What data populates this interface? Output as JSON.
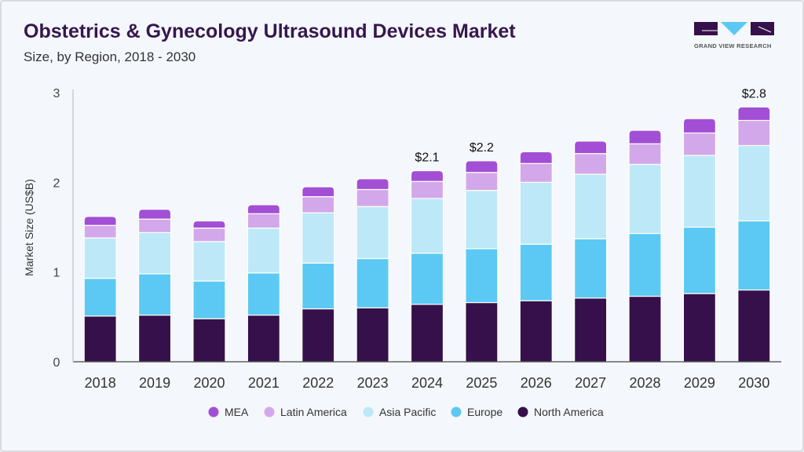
{
  "header": {
    "title": "Obstetrics & Gynecology Ultrasound Devices Market",
    "subtitle": "Size, by Region, 2018 - 2030"
  },
  "logo": {
    "text": "GRAND VIEW RESEARCH"
  },
  "chart_data": {
    "type": "bar",
    "stacked": true,
    "title": "Obstetrics & Gynecology Ultrasound Devices Market",
    "subtitle": "Size, by Region, 2018 - 2030",
    "xlabel": "",
    "ylabel": "Market Size (US$B)",
    "ylim": [
      0,
      3
    ],
    "yticks": [
      0,
      1,
      2,
      3
    ],
    "grid": false,
    "legend": "bottom",
    "categories": [
      "2018",
      "2019",
      "2020",
      "2021",
      "2022",
      "2023",
      "2024",
      "2025",
      "2026",
      "2027",
      "2028",
      "2029",
      "2030"
    ],
    "series": [
      {
        "name": "North America",
        "color": "#36104a",
        "values": [
          0.51,
          0.52,
          0.48,
          0.52,
          0.59,
          0.6,
          0.64,
          0.66,
          0.68,
          0.71,
          0.73,
          0.76,
          0.8
        ]
      },
      {
        "name": "Europe",
        "color": "#5bc9f3",
        "values": [
          0.42,
          0.46,
          0.42,
          0.47,
          0.51,
          0.55,
          0.57,
          0.6,
          0.63,
          0.66,
          0.7,
          0.74,
          0.77
        ]
      },
      {
        "name": "Asia Pacific",
        "color": "#bde8f8",
        "values": [
          0.45,
          0.46,
          0.44,
          0.5,
          0.56,
          0.58,
          0.61,
          0.65,
          0.69,
          0.72,
          0.77,
          0.8,
          0.84
        ]
      },
      {
        "name": "Latin America",
        "color": "#d3a8ea",
        "values": [
          0.14,
          0.15,
          0.15,
          0.16,
          0.18,
          0.19,
          0.19,
          0.2,
          0.21,
          0.23,
          0.23,
          0.25,
          0.28
        ]
      },
      {
        "name": "MEA",
        "color": "#a24fd6",
        "values": [
          0.1,
          0.11,
          0.08,
          0.1,
          0.11,
          0.12,
          0.12,
          0.13,
          0.13,
          0.14,
          0.15,
          0.16,
          0.15
        ]
      }
    ],
    "annotations": [
      {
        "category": "2024",
        "text": "$2.1"
      },
      {
        "category": "2025",
        "text": "$2.2"
      },
      {
        "category": "2030",
        "text": "$2.8"
      }
    ],
    "legend_order": [
      "MEA",
      "Latin America",
      "Asia Pacific",
      "Europe",
      "North America"
    ]
  }
}
